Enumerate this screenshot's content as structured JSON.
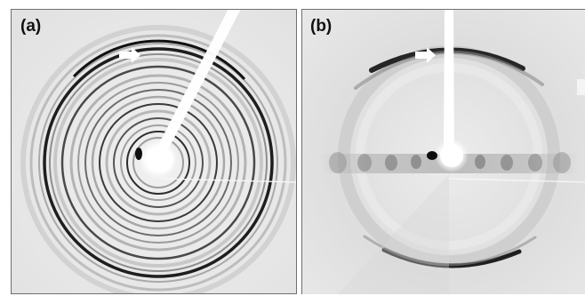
{
  "panels": [
    {
      "label": "(a)"
    },
    {
      "label": "(b)"
    }
  ],
  "colors": {
    "background_a": "#ebebeb",
    "background_b": "#e4e4e4",
    "ring_dark": "#2a2a2a",
    "beam": "#ffffff",
    "frame": "#6f6f6f"
  },
  "icons": [
    "arrow-icon"
  ]
}
